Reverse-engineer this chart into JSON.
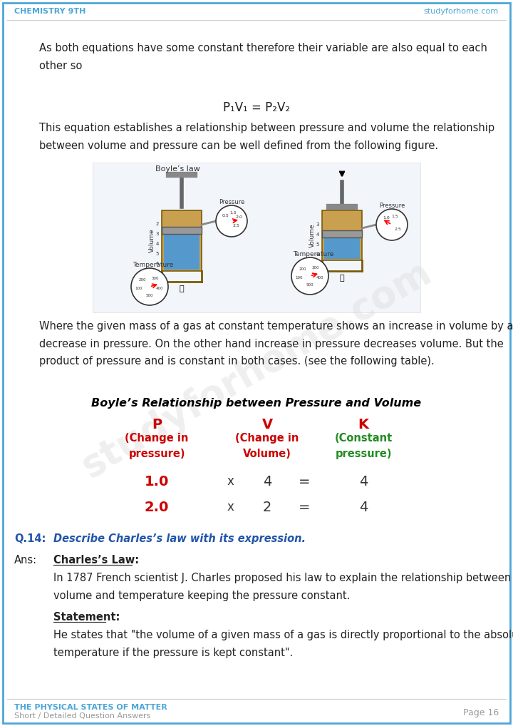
{
  "header_left": "CHEMISTRY 9TH",
  "header_right": "studyforhome.com",
  "header_color": "#4da6d9",
  "footer_left_line1": "THE PHYSICAL STATES OF MATTER",
  "footer_left_line2": "Short / Detailed Question Answers",
  "footer_right": "Page 16",
  "footer_color": "#4da6d9",
  "border_color": "#4da6d9",
  "bg_color": "#ffffff",
  "watermark_text": "studyforhome.com",
  "para1": "As both equations have some constant therefore their variable are also equal to each\nother so",
  "equation": "P₁V₁ = P₂V₂",
  "para2": "This equation establishes a relationship between pressure and volume the relationship\nbetween volume and pressure can be well defined from the following figure.",
  "boyles_label": "Boyle’s law",
  "para3": "Where the given mass of a gas at constant temperature shows an increase in volume by a\ndecrease in pressure. On the other hand increase in pressure decreases volume. But the\nproduct of pressure and is constant in both cases. (see the following table).",
  "table_title": "Boyle’s Relationship between Pressure and Volume",
  "col_header_color": "#cc0000",
  "col_sub_color": "#cc0000",
  "col_k_color": "#228B22",
  "row1_left": "1.0",
  "row1_mid": "4",
  "row1_right": "4",
  "row2_left": "2.0",
  "row2_mid": "2",
  "row2_right": "4",
  "row_color": "#cc0000",
  "q14_label": "Q.14:",
  "q14_color": "#2255aa",
  "q14_text": "Describe Charles’s law with its expression.",
  "ans_label": "Ans:",
  "charleslaw_bold": "Charles’s Law",
  "ans_para1": "In 1787 French scientist J. Charles proposed his law to explain the relationship between\nvolume and temperature keeping the pressure constant.",
  "statement_bold": "Statement",
  "ans_para2": "He states that \"the volume of a given mass of a gas is directly proportional to the absolute\ntemperature if the pressure is kept constant\".",
  "text_color": "#222222"
}
